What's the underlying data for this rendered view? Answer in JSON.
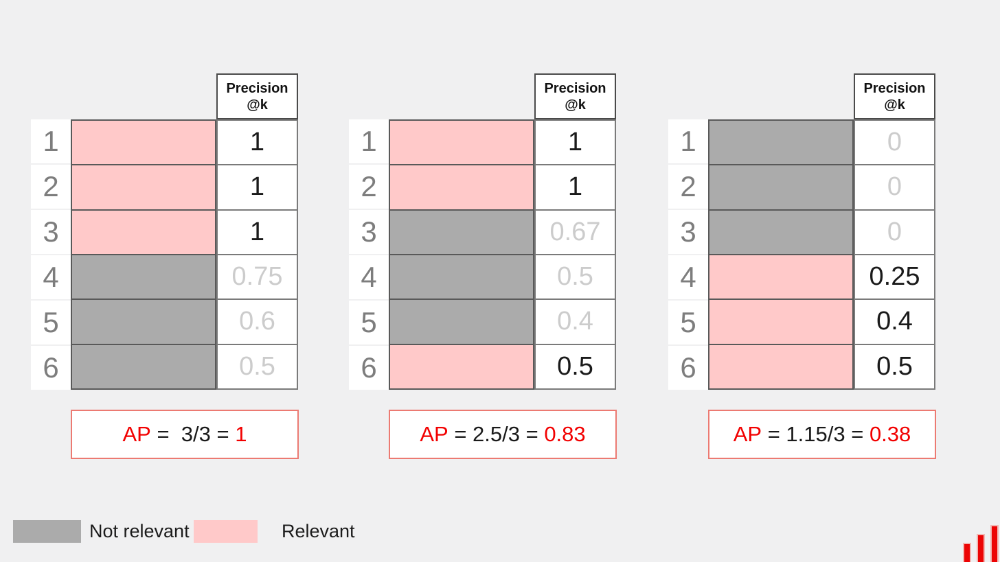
{
  "colors": {
    "page_bg": "#f0f0f1",
    "relevant": "#ffc9c9",
    "not_relevant": "#ababab",
    "accent_red": "#f20000",
    "faded_value": "#cccccc",
    "black_value": "#1a1a1a",
    "ap_border": "#ec7a72",
    "logo_red": "#ec0404"
  },
  "precision_header": {
    "line1": "Precision",
    "line2": "@k"
  },
  "tables": [
    {
      "rows": [
        {
          "rank": "1",
          "relevant": true,
          "precision": "1"
        },
        {
          "rank": "2",
          "relevant": true,
          "precision": "1"
        },
        {
          "rank": "3",
          "relevant": true,
          "precision": "1"
        },
        {
          "rank": "4",
          "relevant": false,
          "precision": "0.75"
        },
        {
          "rank": "5",
          "relevant": false,
          "precision": "0.6"
        },
        {
          "rank": "6",
          "relevant": false,
          "precision": "0.5"
        }
      ],
      "ap": {
        "label": "AP",
        "equation": " =  3/3 = ",
        "result": "1"
      }
    },
    {
      "rows": [
        {
          "rank": "1",
          "relevant": true,
          "precision": "1"
        },
        {
          "rank": "2",
          "relevant": true,
          "precision": "1"
        },
        {
          "rank": "3",
          "relevant": false,
          "precision": "0.67"
        },
        {
          "rank": "4",
          "relevant": false,
          "precision": "0.5"
        },
        {
          "rank": "5",
          "relevant": false,
          "precision": "0.4"
        },
        {
          "rank": "6",
          "relevant": true,
          "precision": "0.5"
        }
      ],
      "ap": {
        "label": "AP",
        "equation": " = 2.5/3 = ",
        "result": "0.83"
      }
    },
    {
      "rows": [
        {
          "rank": "1",
          "relevant": false,
          "precision": "0"
        },
        {
          "rank": "2",
          "relevant": false,
          "precision": "0"
        },
        {
          "rank": "3",
          "relevant": false,
          "precision": "0"
        },
        {
          "rank": "4",
          "relevant": true,
          "precision": "0.25"
        },
        {
          "rank": "5",
          "relevant": true,
          "precision": "0.4"
        },
        {
          "rank": "6",
          "relevant": true,
          "precision": "0.5"
        }
      ],
      "ap": {
        "label": "AP",
        "equation": " = 1.15/3 = ",
        "result": "0.38"
      }
    }
  ],
  "legend": {
    "not_relevant_label": "Not relevant",
    "relevant_label": "Relevant"
  },
  "logo": {
    "type": "bar-chart-logo",
    "bars": 3
  }
}
